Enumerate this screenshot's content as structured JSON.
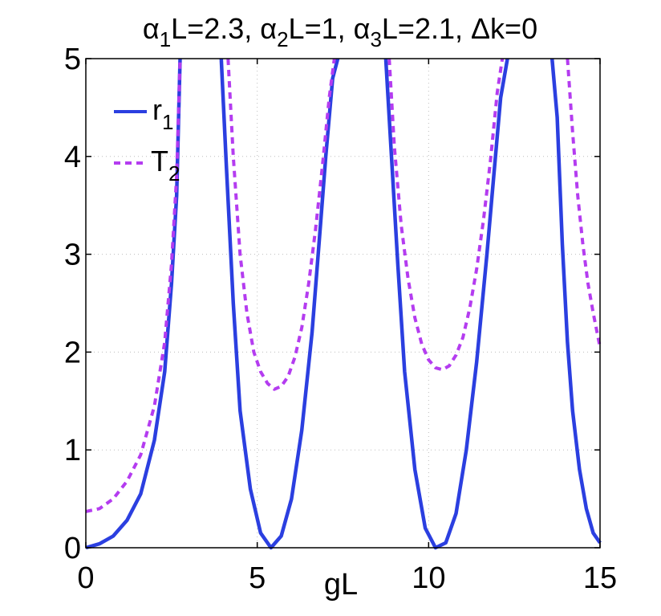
{
  "chart_data": {
    "type": "line",
    "title": {
      "alpha": "α",
      "part1_sub": "1",
      "part1_rest": "L=2.3, ",
      "part2_sub": "2",
      "part2_rest": "L=1, ",
      "part3_sub": "3",
      "part3_rest": "L=2.1, Δk=0"
    },
    "xlabel": "gL",
    "ylabel": "",
    "xlim": [
      0,
      15
    ],
    "ylim": [
      0,
      5
    ],
    "xticks": [
      0,
      5,
      10,
      15
    ],
    "xtick_labels": [
      "0",
      "5",
      "10",
      "15"
    ],
    "yticks": [
      0,
      1,
      2,
      3,
      4,
      5
    ],
    "ytick_labels": [
      "0",
      "1",
      "2",
      "3",
      "4",
      "5"
    ],
    "grid": true,
    "legend_position": "top-left",
    "legend": [
      {
        "base": "r",
        "sub": "1",
        "style": "solid",
        "color": "#2b3fe0"
      },
      {
        "base": "T",
        "sub": "2",
        "style": "dashed",
        "color": "#b43cf0"
      }
    ],
    "series": [
      {
        "name": "r1",
        "color": "#2b3fe0",
        "style": "solid",
        "segments": [
          {
            "x": [
              0,
              0.4,
              0.8,
              1.2,
              1.6,
              2.0,
              2.3,
              2.5,
              2.65,
              2.75
            ],
            "y": [
              0,
              0.04,
              0.12,
              0.28,
              0.55,
              1.1,
              1.8,
              2.7,
              3.6,
              5.0
            ]
          },
          {
            "x": [
              3.95,
              4.1,
              4.3,
              4.5,
              4.8,
              5.1,
              5.4,
              5.7,
              6.0,
              6.3,
              6.6,
              6.8,
              7.0,
              7.2,
              7.35
            ],
            "y": [
              5.0,
              3.9,
              2.5,
              1.4,
              0.6,
              0.15,
              0.0,
              0.12,
              0.5,
              1.2,
              2.2,
              3.1,
              4.0,
              4.8,
              5.0
            ]
          },
          {
            "x": [
              8.75,
              8.9,
              9.1,
              9.3,
              9.6,
              9.9,
              10.2,
              10.5,
              10.8,
              11.1,
              11.4,
              11.7,
              11.9,
              12.1,
              12.3
            ],
            "y": [
              5.0,
              4.1,
              2.9,
              1.8,
              0.8,
              0.2,
              0.0,
              0.05,
              0.35,
              1.0,
              1.9,
              3.0,
              3.8,
              4.6,
              5.0
            ]
          },
          {
            "x": [
              13.6,
              13.75,
              13.9,
              14.05,
              14.2,
              14.4,
              14.6,
              14.8,
              15.0
            ],
            "y": [
              5.0,
              4.4,
              3.1,
              2.1,
              1.4,
              0.8,
              0.4,
              0.15,
              0.05
            ]
          }
        ]
      },
      {
        "name": "T2",
        "color": "#b43cf0",
        "style": "dashed",
        "segments": [
          {
            "x": [
              0,
              0.4,
              0.8,
              1.2,
              1.6,
              2.0,
              2.3,
              2.5,
              2.65,
              2.75
            ],
            "y": [
              0.37,
              0.4,
              0.5,
              0.68,
              0.95,
              1.45,
              2.1,
              2.9,
              3.8,
              5.0
            ]
          },
          {
            "x": [
              4.15,
              4.3,
              4.5,
              4.7,
              4.9,
              5.1,
              5.3,
              5.5,
              5.7,
              5.9,
              6.1,
              6.3,
              6.5,
              6.7,
              6.9,
              7.1,
              7.25
            ],
            "y": [
              5.0,
              4.0,
              3.0,
              2.4,
              2.0,
              1.8,
              1.68,
              1.62,
              1.65,
              1.75,
              1.95,
              2.25,
              2.7,
              3.25,
              3.9,
              4.6,
              5.0
            ]
          },
          {
            "x": [
              8.85,
              9.0,
              9.2,
              9.4,
              9.6,
              9.8,
              10.0,
              10.2,
              10.4,
              10.6,
              10.8,
              11.0,
              11.2,
              11.4,
              11.6,
              11.8,
              12.0,
              12.15
            ],
            "y": [
              5.0,
              4.1,
              3.3,
              2.75,
              2.35,
              2.08,
              1.92,
              1.84,
              1.82,
              1.86,
              1.97,
              2.15,
              2.45,
              2.85,
              3.35,
              3.95,
              4.65,
              5.0
            ]
          },
          {
            "x": [
              14.05,
              14.2,
              14.35,
              14.5,
              14.65,
              14.8,
              15.0
            ],
            "y": [
              5.0,
              4.25,
              3.6,
              3.1,
              2.7,
              2.4,
              2.05
            ]
          }
        ]
      }
    ]
  }
}
